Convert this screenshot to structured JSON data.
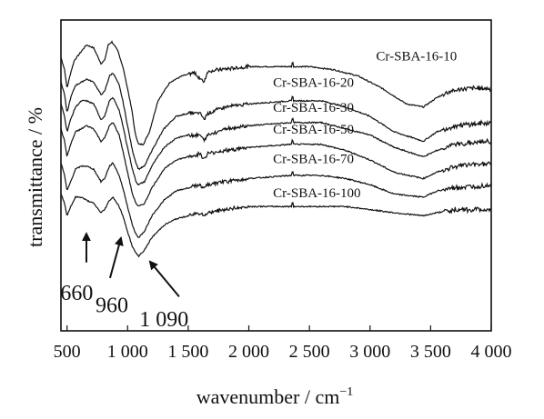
{
  "chart_data": {
    "type": "line",
    "title": "",
    "xlabel": "wavenumber / cm",
    "xlabel_superscript": "−1",
    "ylabel": "transmittance / %",
    "xlim": [
      450,
      4000
    ],
    "ylim": [
      0,
      1
    ],
    "y_tick_labels_shown": false,
    "grid": false,
    "legend": "none",
    "x_ticks": [
      {
        "value": 500,
        "label": "500"
      },
      {
        "value": 1000,
        "label": "1 000"
      },
      {
        "value": 1500,
        "label": "1 500"
      },
      {
        "value": 2000,
        "label": "2 000"
      },
      {
        "value": 2500,
        "label": "2 500"
      },
      {
        "value": 3000,
        "label": "3 000"
      },
      {
        "value": 3500,
        "label": "3 500"
      },
      {
        "value": 4000,
        "label": "4 000"
      }
    ],
    "series": [
      {
        "name": "Cr-SBA-16-10",
        "points": [
          [
            450,
            0.88
          ],
          [
            480,
            0.84
          ],
          [
            500,
            0.78
          ],
          [
            530,
            0.83
          ],
          [
            560,
            0.87
          ],
          [
            600,
            0.89
          ],
          [
            660,
            0.92
          ],
          [
            720,
            0.91
          ],
          [
            780,
            0.86
          ],
          [
            810,
            0.87
          ],
          [
            840,
            0.92
          ],
          [
            870,
            0.93
          ],
          [
            920,
            0.9
          ],
          [
            960,
            0.85
          ],
          [
            1000,
            0.78
          ],
          [
            1040,
            0.7
          ],
          [
            1060,
            0.64
          ],
          [
            1090,
            0.6
          ],
          [
            1130,
            0.6
          ],
          [
            1180,
            0.64
          ],
          [
            1250,
            0.74
          ],
          [
            1350,
            0.8
          ],
          [
            1450,
            0.82
          ],
          [
            1550,
            0.83
          ],
          [
            1630,
            0.8
          ],
          [
            1660,
            0.835
          ],
          [
            1750,
            0.84
          ],
          [
            2000,
            0.85
          ],
          [
            2350,
            0.85
          ],
          [
            2500,
            0.85
          ],
          [
            2700,
            0.84
          ],
          [
            2900,
            0.82
          ],
          [
            3100,
            0.78
          ],
          [
            3300,
            0.73
          ],
          [
            3440,
            0.72
          ],
          [
            3550,
            0.75
          ],
          [
            3650,
            0.77
          ],
          [
            3800,
            0.78
          ],
          [
            4000,
            0.78
          ]
        ]
      },
      {
        "name": "Cr-SBA-16-20",
        "points": [
          [
            450,
            0.8
          ],
          [
            480,
            0.76
          ],
          [
            500,
            0.7
          ],
          [
            530,
            0.75
          ],
          [
            570,
            0.79
          ],
          [
            620,
            0.8
          ],
          [
            660,
            0.81
          ],
          [
            720,
            0.8
          ],
          [
            780,
            0.76
          ],
          [
            810,
            0.77
          ],
          [
            850,
            0.82
          ],
          [
            880,
            0.83
          ],
          [
            930,
            0.79
          ],
          [
            960,
            0.74
          ],
          [
            1000,
            0.66
          ],
          [
            1040,
            0.58
          ],
          [
            1070,
            0.54
          ],
          [
            1090,
            0.52
          ],
          [
            1140,
            0.53
          ],
          [
            1200,
            0.58
          ],
          [
            1300,
            0.65
          ],
          [
            1400,
            0.69
          ],
          [
            1500,
            0.7
          ],
          [
            1600,
            0.7
          ],
          [
            1630,
            0.68
          ],
          [
            1660,
            0.7
          ],
          [
            1800,
            0.72
          ],
          [
            2000,
            0.73
          ],
          [
            2350,
            0.74
          ],
          [
            2600,
            0.74
          ],
          [
            2800,
            0.72
          ],
          [
            3000,
            0.69
          ],
          [
            3200,
            0.64
          ],
          [
            3440,
            0.61
          ],
          [
            3550,
            0.64
          ],
          [
            3700,
            0.66
          ],
          [
            4000,
            0.67
          ]
        ]
      },
      {
        "name": "Cr-SBA-16-30",
        "points": [
          [
            450,
            0.73
          ],
          [
            480,
            0.69
          ],
          [
            500,
            0.64
          ],
          [
            530,
            0.68
          ],
          [
            570,
            0.72
          ],
          [
            620,
            0.74
          ],
          [
            660,
            0.74
          ],
          [
            720,
            0.73
          ],
          [
            780,
            0.68
          ],
          [
            810,
            0.69
          ],
          [
            850,
            0.74
          ],
          [
            880,
            0.75
          ],
          [
            930,
            0.71
          ],
          [
            960,
            0.66
          ],
          [
            1000,
            0.59
          ],
          [
            1040,
            0.52
          ],
          [
            1070,
            0.48
          ],
          [
            1090,
            0.47
          ],
          [
            1140,
            0.48
          ],
          [
            1200,
            0.53
          ],
          [
            1300,
            0.59
          ],
          [
            1400,
            0.62
          ],
          [
            1500,
            0.63
          ],
          [
            1600,
            0.63
          ],
          [
            1630,
            0.61
          ],
          [
            1660,
            0.63
          ],
          [
            1800,
            0.65
          ],
          [
            2000,
            0.66
          ],
          [
            2350,
            0.67
          ],
          [
            2600,
            0.67
          ],
          [
            2800,
            0.65
          ],
          [
            3000,
            0.63
          ],
          [
            3200,
            0.59
          ],
          [
            3440,
            0.56
          ],
          [
            3550,
            0.58
          ],
          [
            3700,
            0.6
          ],
          [
            4000,
            0.61
          ]
        ]
      },
      {
        "name": "Cr-SBA-16-50",
        "points": [
          [
            450,
            0.65
          ],
          [
            480,
            0.61
          ],
          [
            500,
            0.56
          ],
          [
            530,
            0.6
          ],
          [
            570,
            0.64
          ],
          [
            620,
            0.65
          ],
          [
            660,
            0.66
          ],
          [
            720,
            0.65
          ],
          [
            780,
            0.61
          ],
          [
            810,
            0.62
          ],
          [
            850,
            0.66
          ],
          [
            880,
            0.67
          ],
          [
            930,
            0.63
          ],
          [
            960,
            0.58
          ],
          [
            1000,
            0.51
          ],
          [
            1040,
            0.44
          ],
          [
            1070,
            0.41
          ],
          [
            1090,
            0.4
          ],
          [
            1140,
            0.41
          ],
          [
            1200,
            0.46
          ],
          [
            1300,
            0.52
          ],
          [
            1400,
            0.55
          ],
          [
            1500,
            0.56
          ],
          [
            1600,
            0.57
          ],
          [
            1630,
            0.55
          ],
          [
            1660,
            0.57
          ],
          [
            1800,
            0.58
          ],
          [
            2000,
            0.59
          ],
          [
            2350,
            0.6
          ],
          [
            2600,
            0.6
          ],
          [
            2800,
            0.58
          ],
          [
            3000,
            0.55
          ],
          [
            3200,
            0.51
          ],
          [
            3440,
            0.49
          ],
          [
            3550,
            0.51
          ],
          [
            3700,
            0.53
          ],
          [
            4000,
            0.54
          ]
        ]
      },
      {
        "name": "Cr-SBA-16-70",
        "points": [
          [
            450,
            0.54
          ],
          [
            480,
            0.5
          ],
          [
            500,
            0.45
          ],
          [
            530,
            0.48
          ],
          [
            570,
            0.52
          ],
          [
            620,
            0.53
          ],
          [
            660,
            0.53
          ],
          [
            720,
            0.52
          ],
          [
            780,
            0.48
          ],
          [
            810,
            0.49
          ],
          [
            850,
            0.53
          ],
          [
            880,
            0.54
          ],
          [
            930,
            0.5
          ],
          [
            960,
            0.46
          ],
          [
            1000,
            0.4
          ],
          [
            1040,
            0.34
          ],
          [
            1070,
            0.31
          ],
          [
            1090,
            0.3
          ],
          [
            1140,
            0.32
          ],
          [
            1200,
            0.37
          ],
          [
            1300,
            0.42
          ],
          [
            1400,
            0.45
          ],
          [
            1500,
            0.46
          ],
          [
            1600,
            0.47
          ],
          [
            1630,
            0.455
          ],
          [
            1660,
            0.47
          ],
          [
            1800,
            0.48
          ],
          [
            2000,
            0.49
          ],
          [
            2350,
            0.5
          ],
          [
            2600,
            0.5
          ],
          [
            2800,
            0.49
          ],
          [
            3000,
            0.47
          ],
          [
            3200,
            0.44
          ],
          [
            3440,
            0.43
          ],
          [
            3550,
            0.45
          ],
          [
            3700,
            0.46
          ],
          [
            4000,
            0.47
          ]
        ]
      },
      {
        "name": "Cr-SBA-16-100",
        "points": [
          [
            450,
            0.44
          ],
          [
            480,
            0.41
          ],
          [
            500,
            0.37
          ],
          [
            530,
            0.4
          ],
          [
            570,
            0.43
          ],
          [
            620,
            0.43
          ],
          [
            660,
            0.42
          ],
          [
            720,
            0.41
          ],
          [
            780,
            0.38
          ],
          [
            810,
            0.39
          ],
          [
            850,
            0.42
          ],
          [
            880,
            0.43
          ],
          [
            930,
            0.4
          ],
          [
            960,
            0.37
          ],
          [
            1000,
            0.32
          ],
          [
            1040,
            0.27
          ],
          [
            1070,
            0.25
          ],
          [
            1090,
            0.24
          ],
          [
            1140,
            0.26
          ],
          [
            1200,
            0.3
          ],
          [
            1300,
            0.34
          ],
          [
            1400,
            0.36
          ],
          [
            1500,
            0.37
          ],
          [
            1600,
            0.38
          ],
          [
            1630,
            0.37
          ],
          [
            1660,
            0.38
          ],
          [
            1800,
            0.39
          ],
          [
            2000,
            0.4
          ],
          [
            2350,
            0.4
          ],
          [
            2600,
            0.4
          ],
          [
            2800,
            0.4
          ],
          [
            3000,
            0.39
          ],
          [
            3200,
            0.38
          ],
          [
            3440,
            0.37
          ],
          [
            3550,
            0.38
          ],
          [
            3700,
            0.39
          ],
          [
            4000,
            0.39
          ]
        ]
      }
    ],
    "series_labels": [
      {
        "text": "Cr-SBA-16-10",
        "x": 3050,
        "y": 0.87
      },
      {
        "text": "Cr-SBA-16-20",
        "x": 2200,
        "y": 0.785
      },
      {
        "text": "Cr-SBA-16-30",
        "x": 2200,
        "y": 0.705
      },
      {
        "text": "Cr-SBA-16-50",
        "x": 2200,
        "y": 0.635
      },
      {
        "text": "Cr-SBA-16-70",
        "x": 2200,
        "y": 0.54
      },
      {
        "text": "Cr-SBA-16-100",
        "x": 2200,
        "y": 0.43
      }
    ],
    "annotations": [
      {
        "text": "660",
        "arrow_x": 660,
        "arrow_tip_y": 0.33,
        "arrow_tail_y": 0.22,
        "label_x": 580,
        "label_y": 0.1
      },
      {
        "text": "960",
        "arrow_x": 960,
        "arrow_tip_y": 0.31,
        "arrow_tail_y": 0.17,
        "label_x": 870,
        "label_y": 0.06
      },
      {
        "text": "1 090",
        "arrow_x": 1140,
        "arrow_tip_y": 0.24,
        "arrow_tail_y": 0.11,
        "label_x": 1300,
        "label_y": 0.015
      }
    ]
  }
}
